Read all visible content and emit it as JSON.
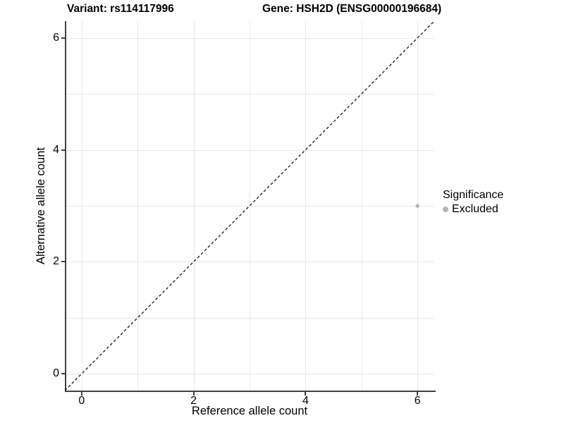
{
  "header": {
    "variant_title": "Variant: rs114117996",
    "gene_title": "Gene: HSH2D (ENSG00000196684)"
  },
  "legend": {
    "title": "Significance",
    "items": [
      {
        "label": "Excluded",
        "color": "#b5b5b5"
      }
    ]
  },
  "chart_data": {
    "type": "scatter",
    "title": "Variant: rs114117996 — Gene: HSH2D (ENSG00000196684)",
    "xlabel": "Reference allele count",
    "ylabel": "Alternative allele count",
    "xlim": [
      -0.3,
      6.3
    ],
    "ylim": [
      -0.3,
      6.3
    ],
    "x_ticks": [
      0,
      2,
      4,
      6
    ],
    "y_ticks": [
      0,
      2,
      4,
      6
    ],
    "gridlines_x": [
      0,
      1,
      2,
      3,
      4,
      5,
      6
    ],
    "gridlines_y": [
      0,
      1,
      2,
      3,
      4,
      5,
      6
    ],
    "grid": true,
    "legend_position": "right",
    "series": [
      {
        "name": "Excluded",
        "color": "#b5b5b5",
        "point_radius": 2.8,
        "points": [
          {
            "x": 6,
            "y": 3
          }
        ]
      }
    ],
    "reference_line": {
      "type": "identity",
      "equation": "y = x",
      "style": "dashed",
      "color": "#000000",
      "from": [
        -0.3,
        -0.3
      ],
      "to": [
        6.3,
        6.3
      ]
    }
  },
  "colors": {
    "background": "#ffffff",
    "grid": "#e8e8e8",
    "axis": "#404040",
    "point": "#b5b5b5",
    "text": "#000000"
  }
}
